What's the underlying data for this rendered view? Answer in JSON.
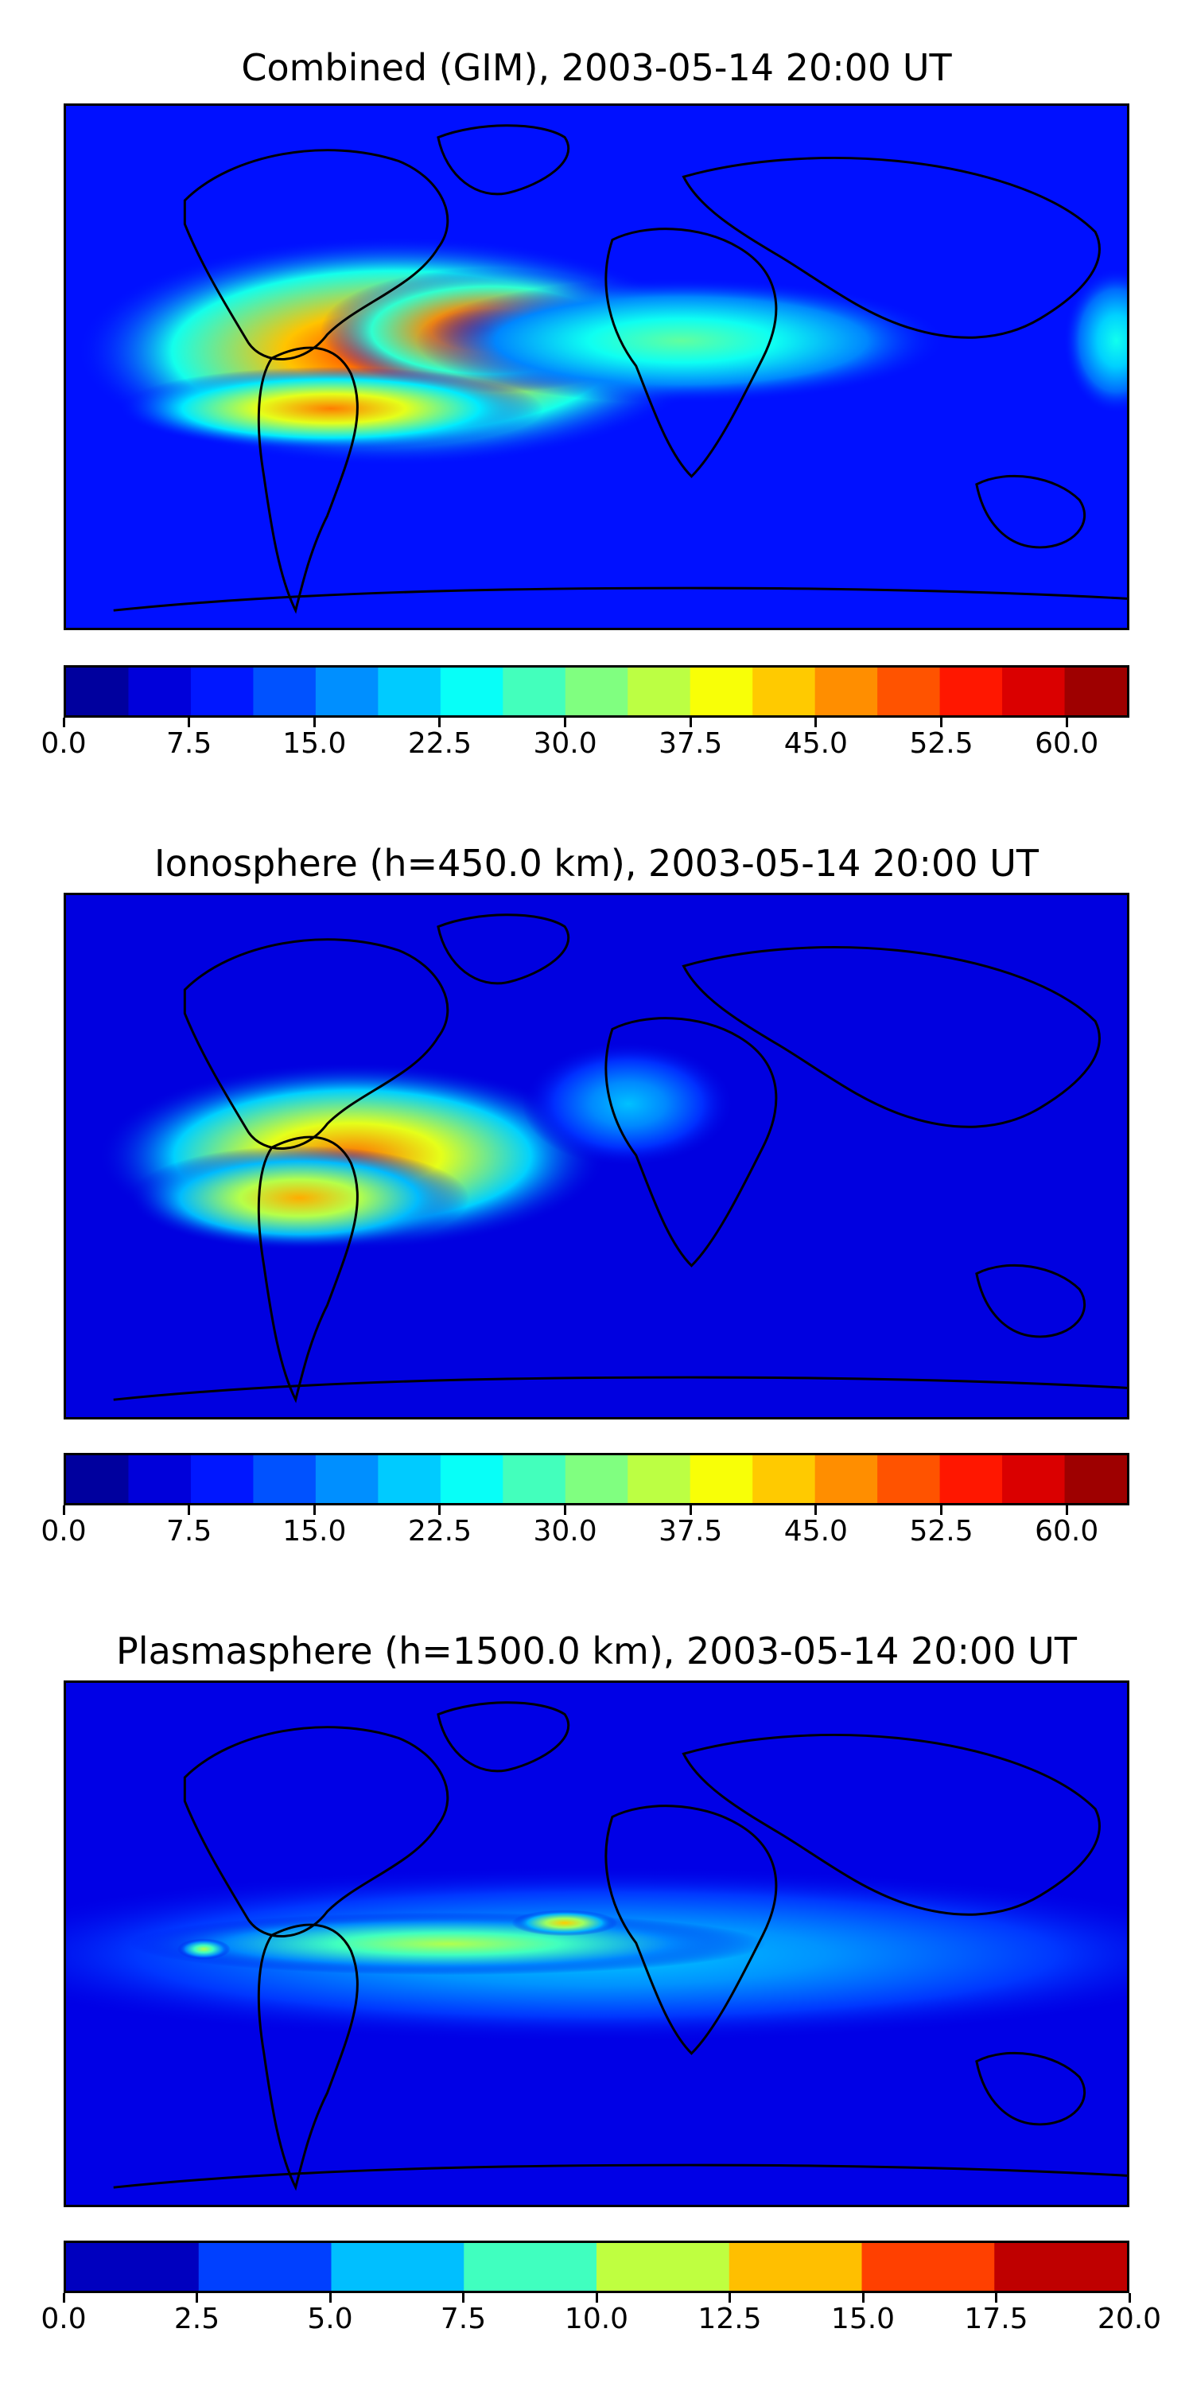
{
  "chart_data": [
    {
      "type": "heatmap",
      "title": "Combined (GIM), 2003-05-14 20:00 UT",
      "colorbar": {
        "min": 0.0,
        "max": 63.75,
        "step": 3.75,
        "tick_labels": [
          "0.0",
          "7.5",
          "15.0",
          "22.5",
          "30.0",
          "37.5",
          "45.0",
          "52.5",
          "60.0"
        ],
        "tick_values": [
          0.0,
          7.5,
          15.0,
          22.5,
          30.0,
          37.5,
          45.0,
          52.5,
          60.0
        ]
      },
      "features": [
        {
          "region": "tropical Pacific west of South America",
          "peak": 55
        },
        {
          "region": "northern South America",
          "peak": 60
        },
        {
          "region": "southern Pacific anomaly",
          "peak": 48
        },
        {
          "region": "equatorial Atlantic",
          "peak": 30
        },
        {
          "region": "east Pacific (right edge)",
          "peak": 25
        }
      ],
      "background_level": 9
    },
    {
      "type": "heatmap",
      "title": "Ionosphere  (h=450.0 km), 2003-05-14 20:00 UT",
      "colorbar": {
        "min": 0.0,
        "max": 63.75,
        "step": 3.75,
        "tick_labels": [
          "0.0",
          "7.5",
          "15.0",
          "22.5",
          "30.0",
          "37.5",
          "45.0",
          "52.5",
          "60.0"
        ],
        "tick_values": [
          0.0,
          7.5,
          15.0,
          22.5,
          30.0,
          37.5,
          45.0,
          52.5,
          60.0
        ]
      },
      "features": [
        {
          "region": "Caribbean / north South America",
          "peak": 49
        },
        {
          "region": "southeast Pacific",
          "peak": 45
        },
        {
          "region": "eastern Atlantic",
          "peak": 20
        }
      ],
      "background_level": 6
    },
    {
      "type": "heatmap",
      "title": "Plasmasphere (h=1500.0 km), 2003-05-14 20:00 UT",
      "colorbar": {
        "min": 0.0,
        "max": 20.0,
        "step": 2.5,
        "tick_labels": [
          "0.0",
          "2.5",
          "5.0",
          "7.5",
          "10.0",
          "12.5",
          "15.0",
          "17.5",
          "20.0"
        ],
        "tick_values": [
          0.0,
          2.5,
          5.0,
          7.5,
          10.0,
          12.5,
          15.0,
          17.5,
          20.0
        ]
      },
      "features": [
        {
          "region": "equatorial band",
          "peak": 6.5
        },
        {
          "region": "tropical Atlantic / Africa",
          "peak": 11
        },
        {
          "region": "central Atlantic",
          "peak": 13.5
        },
        {
          "region": "east Pacific",
          "peak": 11
        }
      ],
      "background_level": 2
    }
  ]
}
